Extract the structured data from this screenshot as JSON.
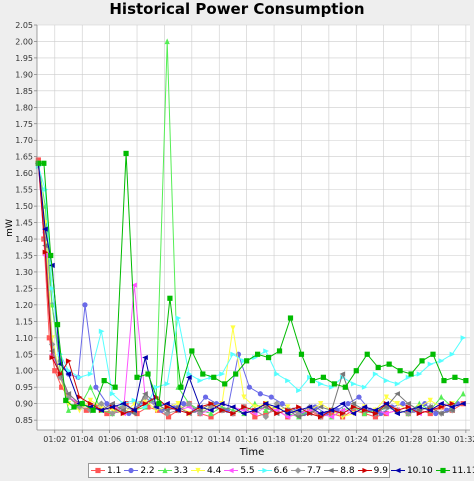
{
  "chart_data": {
    "type": "line",
    "title": "Historical Power Consumption",
    "xlabel": "Time",
    "ylabel": "mW",
    "ylim": [
      0.82,
      2.05
    ],
    "y_ticks": [
      "0.85",
      "0.90",
      "0.95",
      "1.00",
      "1.05",
      "1.10",
      "1.15",
      "1.20",
      "1.25",
      "1.30",
      "1.35",
      "1.40",
      "1.45",
      "1.50",
      "1.55",
      "1.60",
      "1.65",
      "1.70",
      "1.75",
      "1.80",
      "1.85",
      "1.90",
      "1.95",
      "2.00",
      "2.05"
    ],
    "x_ticks": [
      "01:02",
      "01:04",
      "01:06",
      "01:08",
      "01:10",
      "01:12",
      "01:14",
      "01:16",
      "01:18",
      "01:20",
      "01:22",
      "01:24",
      "01:26",
      "01:28",
      "01:30",
      "01:32"
    ],
    "x_range_minutes": [
      60.7,
      92.3
    ],
    "grid": true,
    "legend_position": "bottom",
    "series": [
      {
        "name": "1.1",
        "color": "#ff5555",
        "marker": "square",
        "x": [
          60.8,
          61.2,
          61.6,
          62.0,
          62.5,
          63.0,
          63.6,
          64.3,
          65.0,
          65.8,
          66.5,
          67.2,
          68.0,
          68.8,
          69.5,
          70.3,
          71.0,
          71.8,
          72.6,
          73.4,
          74.2,
          75.0,
          75.8,
          76.6,
          77.4,
          78.2,
          79.0,
          79.8,
          80.6,
          81.4,
          82.2,
          83.0,
          83.8,
          84.6,
          85.4,
          86.2,
          87.0,
          87.8,
          88.6,
          89.4,
          90.2,
          91.0,
          91.8
        ],
        "y": [
          1.64,
          1.4,
          1.1,
          1.0,
          0.95,
          0.92,
          0.9,
          0.88,
          0.89,
          0.87,
          0.88,
          0.9,
          0.87,
          0.89,
          0.88,
          0.86,
          0.88,
          0.9,
          0.87,
          0.86,
          0.88,
          0.87,
          0.89,
          0.86,
          0.87,
          0.88,
          0.86,
          0.87,
          0.88,
          0.86,
          0.87,
          0.86,
          0.88,
          0.87,
          0.86,
          0.87,
          0.88,
          0.87,
          0.88,
          0.87,
          0.89,
          0.88,
          0.9
        ]
      },
      {
        "name": "2.2",
        "color": "#6a6ae8",
        "marker": "circle",
        "x": [
          60.8,
          61.3,
          61.8,
          62.4,
          63.0,
          63.7,
          64.2,
          65.0,
          65.8,
          66.6,
          67.4,
          68.2,
          69.0,
          69.8,
          70.6,
          71.4,
          72.2,
          73.0,
          73.8,
          74.6,
          75.4,
          76.2,
          77.0,
          77.8,
          78.6,
          79.4,
          80.2,
          81.0,
          81.8,
          82.6,
          83.4,
          84.2,
          85.0,
          85.8,
          86.6,
          87.4,
          88.2,
          89.0,
          89.8,
          90.6,
          91.4
        ],
        "y": [
          1.63,
          1.42,
          1.2,
          1.03,
          0.99,
          0.98,
          1.2,
          0.95,
          0.9,
          0.88,
          0.87,
          0.9,
          0.91,
          0.88,
          0.89,
          0.9,
          0.88,
          0.92,
          0.9,
          0.88,
          1.05,
          0.95,
          0.93,
          0.92,
          0.9,
          0.88,
          0.87,
          0.89,
          0.87,
          0.88,
          0.9,
          0.92,
          0.88,
          0.87,
          0.89,
          0.9,
          0.88,
          0.9,
          0.87,
          0.88,
          0.9
        ]
      },
      {
        "name": "3.3",
        "color": "#55ee55",
        "marker": "triangle-up",
        "x": [
          60.8,
          61.3,
          61.8,
          62.4,
          63.0,
          63.8,
          64.6,
          65.4,
          66.2,
          67.0,
          67.8,
          68.6,
          69.4,
          70.2,
          71.0,
          71.8,
          72.6,
          73.4,
          74.2,
          75.0,
          75.8,
          76.6,
          77.4,
          78.2,
          79.0,
          79.8,
          80.6,
          81.4,
          82.2,
          83.0,
          83.8,
          84.6,
          85.4,
          86.2,
          87.0,
          87.8,
          88.6,
          89.4,
          90.2,
          91.0,
          91.8
        ],
        "y": [
          1.63,
          1.5,
          1.2,
          1.0,
          0.88,
          0.89,
          0.95,
          0.88,
          0.87,
          0.9,
          0.88,
          0.89,
          0.92,
          2.0,
          0.95,
          0.9,
          0.88,
          0.87,
          0.89,
          0.88,
          0.87,
          0.9,
          0.88,
          0.89,
          0.87,
          0.86,
          0.88,
          0.87,
          0.86,
          0.88,
          0.89,
          0.87,
          0.88,
          0.89,
          0.88,
          0.87,
          0.9,
          0.88,
          0.92,
          0.89,
          0.93
        ]
      },
      {
        "name": "4.4",
        "color": "#ffff44",
        "marker": "triangle-down",
        "x": [
          60.8,
          61.3,
          61.8,
          62.4,
          63.0,
          63.8,
          64.6,
          65.4,
          66.2,
          67.0,
          67.8,
          68.6,
          69.4,
          70.2,
          71.0,
          71.8,
          72.6,
          73.4,
          74.2,
          75.0,
          75.8,
          76.6,
          77.4,
          78.2,
          79.0,
          79.8,
          80.6,
          81.4,
          82.2,
          83.0,
          83.8,
          84.6,
          85.4,
          86.2,
          87.0,
          87.8,
          88.6,
          89.4,
          90.2,
          91.0
        ],
        "y": [
          1.63,
          1.45,
          1.1,
          0.98,
          0.9,
          0.88,
          0.91,
          0.89,
          0.88,
          0.87,
          0.9,
          0.91,
          0.88,
          0.89,
          0.9,
          0.87,
          0.88,
          0.89,
          0.9,
          1.13,
          0.92,
          0.89,
          0.9,
          0.88,
          0.89,
          0.87,
          0.88,
          0.9,
          0.88,
          0.86,
          0.87,
          0.89,
          0.88,
          0.92,
          0.9,
          0.88,
          0.89,
          0.91,
          0.89,
          0.9
        ]
      },
      {
        "name": "5.5",
        "color": "#ff55ff",
        "marker": "triangle-left",
        "x": [
          60.8,
          61.3,
          61.8,
          62.4,
          63.0,
          63.8,
          64.6,
          65.4,
          66.2,
          67.0,
          67.8,
          68.6,
          69.4,
          70.2,
          71.0,
          71.8,
          72.6,
          73.4,
          74.2,
          75.0,
          75.8,
          76.6,
          77.4,
          78.2,
          79.0,
          79.8,
          80.6,
          81.4,
          82.2,
          83.0,
          83.8,
          84.6,
          85.4,
          86.2,
          87.0,
          87.8,
          88.6,
          89.4,
          90.2,
          91.0
        ],
        "y": [
          1.63,
          1.35,
          1.05,
          0.99,
          0.92,
          0.9,
          0.89,
          0.88,
          0.9,
          0.87,
          1.26,
          0.92,
          0.89,
          0.9,
          0.88,
          0.89,
          0.87,
          0.88,
          0.9,
          0.89,
          0.88,
          0.87,
          0.89,
          0.88,
          0.86,
          0.87,
          0.88,
          0.87,
          0.86,
          0.88,
          0.87,
          0.89,
          0.88,
          0.87,
          0.88,
          0.89,
          0.87,
          0.88,
          0.9,
          0.89
        ]
      },
      {
        "name": "6.6",
        "color": "#55ffff",
        "marker": "triangle-right",
        "x": [
          60.8,
          61.3,
          61.8,
          62.4,
          63.0,
          63.8,
          64.6,
          65.4,
          66.2,
          67.0,
          67.8,
          68.6,
          69.4,
          70.2,
          71.0,
          71.8,
          72.6,
          73.4,
          74.2,
          75.0,
          75.8,
          76.6,
          77.4,
          78.2,
          79.0,
          79.8,
          80.6,
          81.4,
          82.2,
          83.0,
          83.8,
          84.6,
          85.4,
          86.2,
          87.0,
          87.8,
          88.6,
          89.4,
          90.2,
          91.0,
          91.8
        ],
        "y": [
          1.62,
          1.55,
          1.25,
          1.05,
          1.0,
          0.98,
          0.99,
          1.12,
          0.93,
          0.9,
          0.91,
          0.89,
          0.95,
          0.96,
          1.16,
          0.99,
          0.97,
          0.98,
          0.99,
          1.05,
          1.03,
          1.04,
          1.06,
          0.99,
          0.97,
          0.94,
          0.98,
          0.96,
          0.95,
          0.98,
          0.96,
          0.95,
          0.99,
          0.97,
          0.96,
          0.98,
          0.99,
          1.02,
          1.03,
          1.05,
          1.1
        ]
      },
      {
        "name": "7.7",
        "color": "#999999",
        "marker": "diamond",
        "x": [
          60.8,
          61.3,
          61.8,
          62.4,
          63.0,
          63.8,
          64.6,
          65.4,
          66.2,
          67.0,
          67.8,
          68.6,
          69.4,
          70.2,
          71.0,
          71.8,
          72.6,
          73.4,
          74.2,
          75.0,
          75.8,
          76.6,
          77.4,
          78.2,
          79.0,
          79.8,
          80.6,
          81.4,
          82.2,
          83.0,
          83.8,
          84.6,
          85.4,
          86.2,
          87.0,
          87.8,
          88.6,
          89.4,
          90.2,
          91.0
        ],
        "y": [
          1.63,
          1.4,
          1.08,
          0.98,
          0.92,
          0.89,
          0.88,
          0.9,
          0.87,
          0.89,
          0.88,
          0.92,
          0.89,
          0.87,
          0.88,
          0.9,
          0.87,
          0.89,
          0.88,
          0.87,
          0.89,
          0.88,
          0.86,
          0.9,
          0.88,
          0.87,
          0.89,
          0.86,
          0.88,
          0.87,
          0.89,
          0.88,
          0.87,
          0.89,
          0.88,
          0.87,
          0.88,
          0.89,
          0.87,
          0.88
        ]
      },
      {
        "name": "8.8",
        "color": "#777777",
        "marker": "triangle-left",
        "x": [
          60.8,
          61.3,
          61.8,
          62.4,
          63.0,
          63.8,
          64.6,
          65.4,
          66.2,
          67.0,
          67.8,
          68.6,
          69.4,
          70.2,
          71.0,
          71.8,
          72.6,
          73.4,
          74.2,
          75.0,
          75.8,
          76.6,
          77.4,
          78.2,
          79.0,
          79.8,
          80.6,
          81.4,
          82.2,
          83.0,
          83.8,
          84.6,
          85.4,
          86.2,
          87.0,
          87.8,
          88.6,
          89.4,
          90.2,
          91.0
        ],
        "y": [
          1.63,
          1.38,
          1.06,
          0.99,
          0.93,
          0.9,
          0.89,
          0.88,
          0.9,
          0.88,
          0.87,
          0.93,
          0.9,
          0.88,
          0.89,
          0.87,
          0.88,
          0.9,
          0.88,
          0.89,
          0.87,
          0.88,
          0.89,
          0.87,
          0.88,
          0.86,
          0.87,
          0.89,
          0.88,
          0.99,
          0.9,
          0.88,
          0.87,
          0.89,
          0.93,
          0.9,
          0.88,
          0.89,
          0.87,
          0.88
        ]
      },
      {
        "name": "9.9",
        "color": "#cc0000",
        "marker": "triangle-right",
        "x": [
          60.8,
          61.3,
          61.8,
          62.4,
          63.0,
          63.8,
          64.6,
          65.4,
          66.2,
          67.0,
          67.8,
          68.6,
          69.4,
          70.2,
          71.0,
          71.8,
          72.6,
          73.4,
          74.2,
          75.0,
          75.8,
          76.6,
          77.4,
          78.2,
          79.0,
          79.8,
          80.6,
          81.4,
          82.2,
          83.0,
          83.8,
          84.6,
          85.4,
          86.2,
          87.0,
          87.8,
          88.6,
          89.4,
          90.2,
          91.0
        ],
        "y": [
          1.63,
          1.36,
          1.04,
          0.99,
          1.03,
          0.92,
          0.9,
          0.88,
          0.89,
          0.87,
          0.88,
          0.9,
          0.92,
          0.89,
          0.88,
          0.87,
          0.89,
          0.9,
          0.88,
          0.87,
          0.89,
          0.88,
          0.9,
          0.87,
          0.88,
          0.89,
          0.87,
          0.86,
          0.88,
          0.87,
          0.89,
          0.88,
          0.87,
          0.9,
          0.88,
          0.89,
          0.87,
          0.88,
          0.89,
          0.9
        ]
      },
      {
        "name": "10.10",
        "color": "#0000aa",
        "marker": "triangle-left",
        "x": [
          60.8,
          61.3,
          61.8,
          62.4,
          63.0,
          63.8,
          64.6,
          65.4,
          66.2,
          67.0,
          67.8,
          68.6,
          69.4,
          70.2,
          71.0,
          71.8,
          72.6,
          73.4,
          74.2,
          75.0,
          75.8,
          76.6,
          77.4,
          78.2,
          79.0,
          79.8,
          80.6,
          81.4,
          82.2,
          83.0,
          83.8,
          84.6,
          85.4,
          86.2,
          87.0,
          87.8,
          88.6,
          89.4,
          90.2,
          91.0,
          91.8
        ],
        "y": [
          1.63,
          1.43,
          1.32,
          1.02,
          0.99,
          0.9,
          0.89,
          0.88,
          0.89,
          0.9,
          0.88,
          1.04,
          0.89,
          0.9,
          0.88,
          0.98,
          0.89,
          0.88,
          0.9,
          0.89,
          0.87,
          0.88,
          0.9,
          0.89,
          0.87,
          0.88,
          0.89,
          0.87,
          0.88,
          0.9,
          0.87,
          0.89,
          0.88,
          0.9,
          0.87,
          0.88,
          0.89,
          0.88,
          0.9,
          0.89,
          0.9
        ]
      },
      {
        "name": "11.11",
        "color": "#00bb00",
        "marker": "square",
        "x": [
          60.8,
          61.2,
          61.7,
          62.2,
          62.8,
          63.4,
          64.0,
          64.8,
          65.6,
          66.4,
          67.2,
          68.0,
          68.8,
          69.6,
          70.4,
          71.2,
          72.0,
          72.8,
          73.6,
          74.4,
          75.2,
          76.0,
          76.8,
          77.6,
          78.4,
          79.2,
          80.0,
          80.8,
          81.6,
          82.4,
          83.2,
          84.0,
          84.8,
          85.6,
          86.4,
          87.2,
          88.0,
          88.8,
          89.6,
          90.4,
          91.2,
          92.0
        ],
        "y": [
          1.63,
          1.63,
          1.35,
          1.14,
          0.91,
          0.89,
          0.9,
          0.88,
          0.97,
          0.95,
          1.66,
          0.98,
          0.99,
          0.9,
          1.22,
          0.95,
          1.06,
          0.99,
          0.98,
          0.96,
          0.99,
          1.03,
          1.05,
          1.04,
          1.06,
          1.16,
          1.05,
          0.97,
          0.98,
          0.96,
          0.95,
          1.0,
          1.05,
          1.01,
          1.02,
          1.0,
          0.99,
          1.03,
          1.05,
          0.97,
          0.98,
          0.97
        ]
      }
    ]
  }
}
